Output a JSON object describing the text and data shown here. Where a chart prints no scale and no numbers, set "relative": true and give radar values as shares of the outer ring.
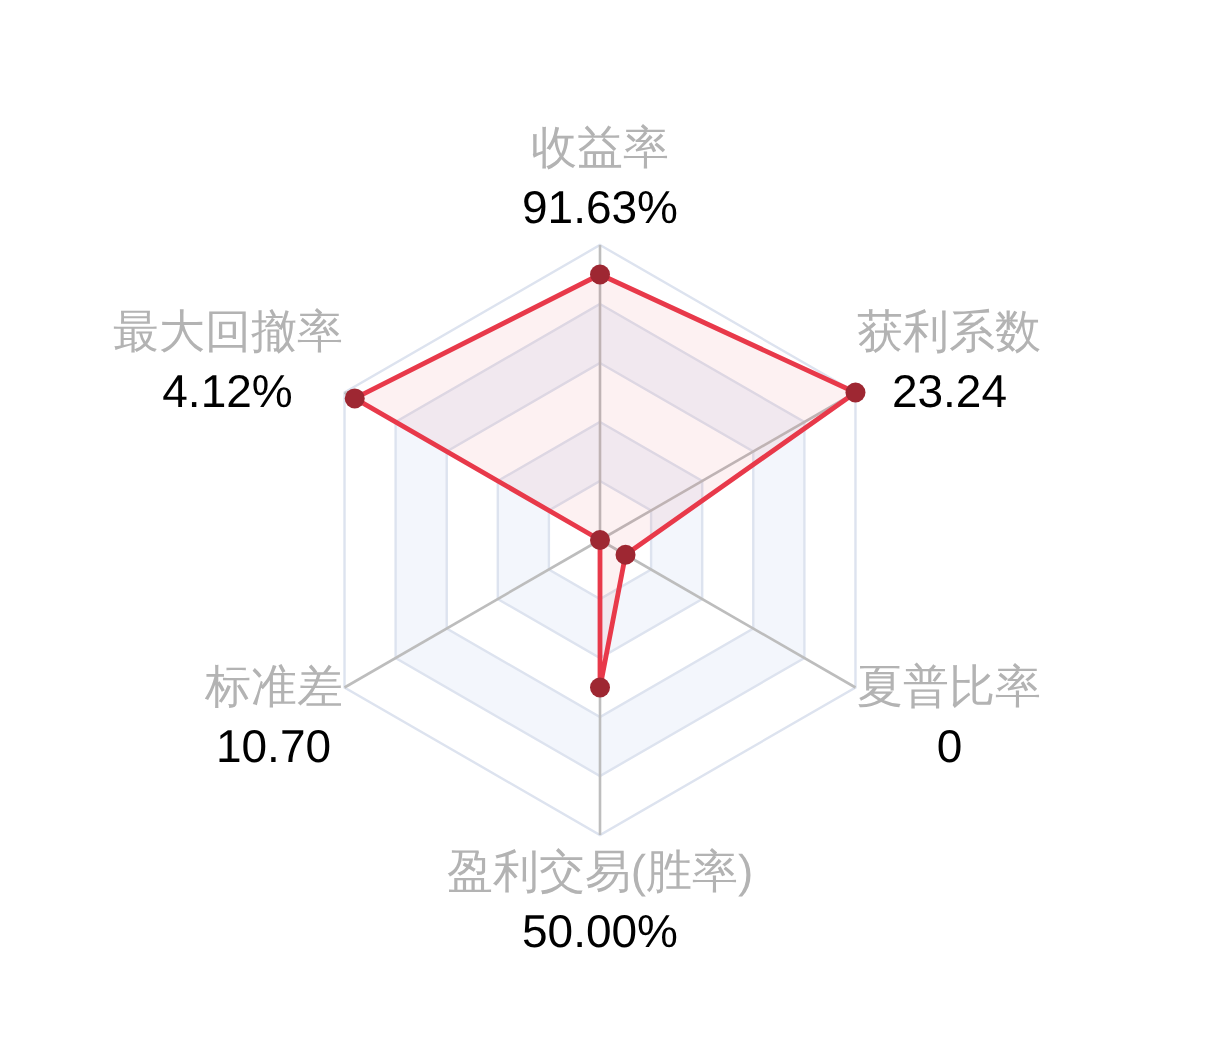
{
  "chart_data": {
    "type": "radar",
    "categories": [
      "收益率\n91.63%",
      "获利系数\n23.24",
      "夏普比率\n0",
      "盈利交易(胜率)\n50.00%",
      "标准差\n10.70",
      "最大回撤率\n4.12%"
    ],
    "relative": true,
    "grid": true,
    "marker": "circle",
    "series": [
      {
        "color": "#e8394a",
        "values": [
          0.9,
          1,
          0.1,
          0.5,
          0,
          0.96
        ]
      }
    ]
  }
}
